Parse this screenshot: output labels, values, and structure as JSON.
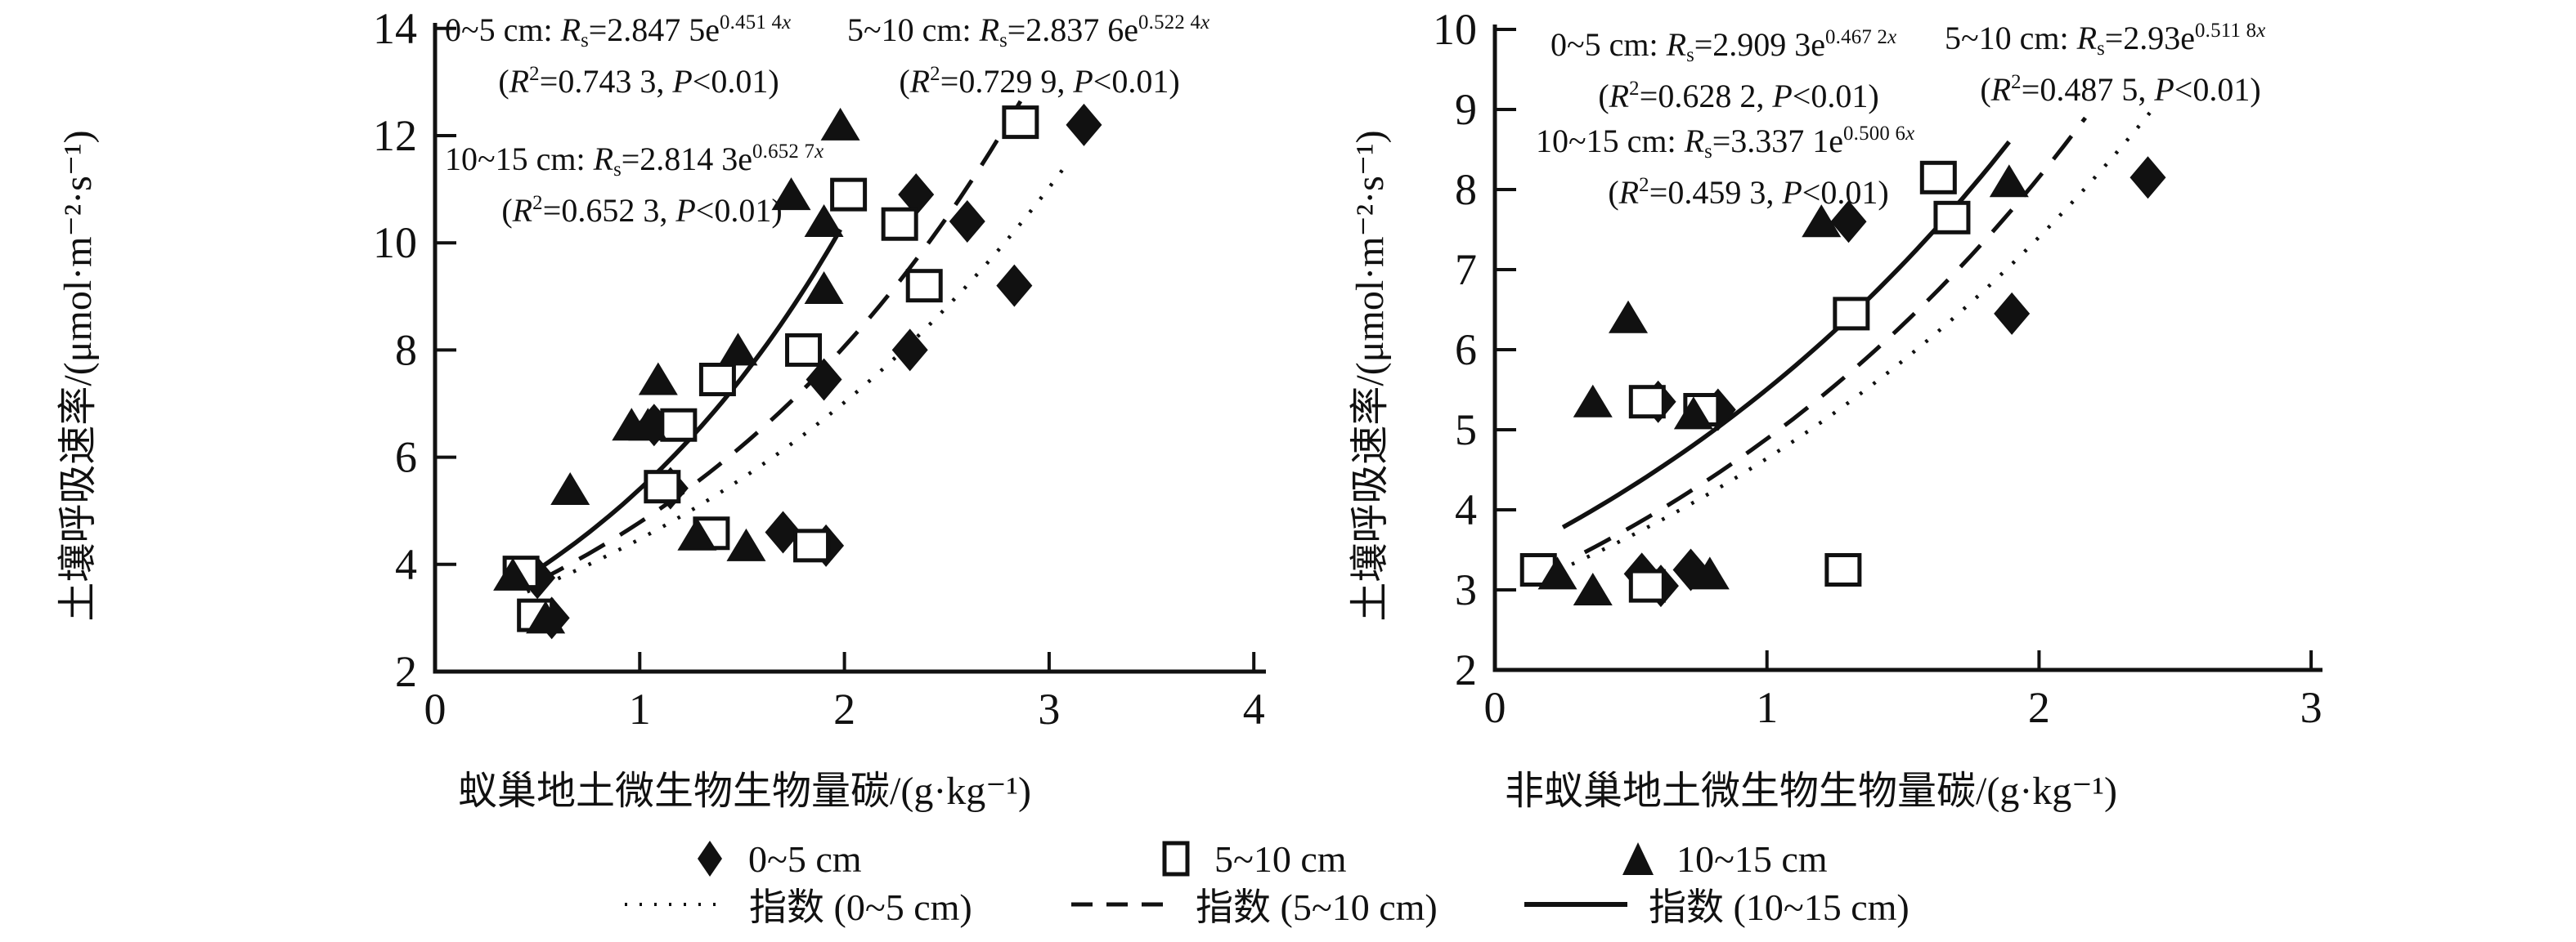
{
  "figure": {
    "background": "#ffffff",
    "ink": "#111111"
  },
  "ylabel": "土壤呼吸速率/(μmol·m⁻²·s⁻¹)",
  "chart_data": [
    {
      "type": "scatter",
      "panel": "ant-nest-soil",
      "title": "",
      "xlabel": "蚁巢地土微生物生物量碳/(g·kg⁻¹)",
      "ylabel": "土壤呼吸速率/(μmol·m⁻²·s⁻¹)",
      "xlim": [
        0,
        4
      ],
      "ylim": [
        2,
        14
      ],
      "x_ticks": [
        0,
        1,
        2,
        3,
        4
      ],
      "y_ticks": [
        2,
        4,
        6,
        8,
        10,
        12,
        14
      ],
      "grid": false,
      "series": [
        {
          "name": "0~5 cm",
          "marker": "diamond",
          "points": [
            [
              0.5,
              3.75
            ],
            [
              0.57,
              3.0
            ],
            [
              1.07,
              6.6
            ],
            [
              1.15,
              5.42
            ],
            [
              1.7,
              4.6
            ],
            [
              1.9,
              7.45
            ],
            [
              1.91,
              4.35
            ],
            [
              2.32,
              8.0
            ],
            [
              2.35,
              10.9
            ],
            [
              2.6,
              10.4
            ],
            [
              2.83,
              9.2
            ],
            [
              3.17,
              12.2
            ]
          ]
        },
        {
          "name": "5~10 cm",
          "marker": "square",
          "points": [
            [
              0.42,
              3.85
            ],
            [
              0.49,
              3.05
            ],
            [
              1.11,
              5.45
            ],
            [
              1.19,
              6.6
            ],
            [
              1.35,
              4.58
            ],
            [
              1.38,
              7.45
            ],
            [
              1.8,
              8.0
            ],
            [
              1.84,
              4.35
            ],
            [
              2.02,
              10.9
            ],
            [
              2.27,
              10.35
            ],
            [
              2.39,
              9.2
            ],
            [
              2.86,
              12.25
            ]
          ]
        },
        {
          "name": "10~15 cm",
          "marker": "triangle",
          "points": [
            [
              0.38,
              3.8
            ],
            [
              0.54,
              3.0
            ],
            [
              0.66,
              5.4
            ],
            [
              0.96,
              6.6
            ],
            [
              1.04,
              6.6
            ],
            [
              1.09,
              7.45
            ],
            [
              1.28,
              4.55
            ],
            [
              1.48,
              8.0
            ],
            [
              1.52,
              4.35
            ],
            [
              1.74,
              10.9
            ],
            [
              1.9,
              10.4
            ],
            [
              1.9,
              9.15
            ],
            [
              1.98,
              12.2
            ]
          ]
        }
      ],
      "fits": [
        {
          "name": "指数 (0~5 cm)",
          "line": "dotted",
          "a": 2.8475,
          "b": 0.4514,
          "x_range": [
            0.45,
            3.1
          ],
          "equation": "Rs=2.847 5e^0.451 4x",
          "r2": "0.743 3",
          "p": "<0.01"
        },
        {
          "name": "指数 (5~10 cm)",
          "line": "dashed",
          "a": 2.8376,
          "b": 0.5224,
          "x_range": [
            0.5,
            2.86
          ],
          "equation": "Rs=2.837 6e^0.522 4x",
          "r2": "0.729 9",
          "p": "<0.01"
        },
        {
          "name": "指数 (10~15 cm)",
          "line": "solid",
          "a": 2.8143,
          "b": 0.6527,
          "x_range": [
            0.43,
            1.98
          ],
          "equation": "Rs=2.814 3e^0.652 7x",
          "r2": "0.652 3",
          "p": "<0.01"
        }
      ],
      "annotations": [
        {
          "lines": [
            [
              {
                "t": "0~5 cm: "
              },
              {
                "t": "R",
                "s": "i"
              },
              {
                "t": "s",
                "s": "sub"
              },
              {
                "t": "=2.847 5e"
              },
              {
                "t": "0.451 4",
                "s": "sup"
              },
              {
                "t": "x",
                "s": "supi"
              }
            ],
            [
              {
                "t": "("
              },
              {
                "t": "R",
                "s": "i"
              },
              {
                "t": "2",
                "s": "sup"
              },
              {
                "t": "=0.743 3, "
              },
              {
                "t": "P",
                "s": "i"
              },
              {
                "t": "<0.01)"
              }
            ]
          ]
        },
        {
          "lines": [
            [
              {
                "t": "5~10 cm: "
              },
              {
                "t": "R",
                "s": "i"
              },
              {
                "t": "s",
                "s": "sub"
              },
              {
                "t": "=2.837 6e"
              },
              {
                "t": "0.522 4",
                "s": "sup"
              },
              {
                "t": "x",
                "s": "supi"
              }
            ],
            [
              {
                "t": "("
              },
              {
                "t": "R",
                "s": "i"
              },
              {
                "t": "2",
                "s": "sup"
              },
              {
                "t": "=0.729 9, "
              },
              {
                "t": "P",
                "s": "i"
              },
              {
                "t": "<0.01)"
              }
            ]
          ]
        },
        {
          "lines": [
            [
              {
                "t": "10~15 cm: "
              },
              {
                "t": "R",
                "s": "i"
              },
              {
                "t": "s",
                "s": "sub"
              },
              {
                "t": "=2.814 3e"
              },
              {
                "t": "0.652 7",
                "s": "sup"
              },
              {
                "t": "x",
                "s": "supi"
              }
            ],
            [
              {
                "t": "("
              },
              {
                "t": "R",
                "s": "i"
              },
              {
                "t": "2",
                "s": "sup"
              },
              {
                "t": "=0.652 3, "
              },
              {
                "t": "P",
                "s": "i"
              },
              {
                "t": "<0.01)"
              }
            ]
          ]
        }
      ]
    },
    {
      "type": "scatter",
      "panel": "non-ant-nest-soil",
      "title": "",
      "xlabel": "非蚁巢地土微生物生物量碳/(g·kg⁻¹)",
      "ylabel": "土壤呼吸速率/(μmol·m⁻²·s⁻¹)",
      "xlim": [
        0,
        3
      ],
      "ylim": [
        2,
        10
      ],
      "x_ticks": [
        0,
        1,
        2,
        3
      ],
      "y_ticks": [
        2,
        3,
        4,
        5,
        6,
        7,
        8,
        9,
        10
      ],
      "grid": false,
      "series": [
        {
          "name": "0~5 cm",
          "marker": "diamond",
          "points": [
            [
              0.54,
              3.2
            ],
            [
              0.61,
              3.05
            ],
            [
              0.72,
              3.25
            ],
            [
              0.6,
              5.35
            ],
            [
              0.82,
              5.25
            ],
            [
              1.3,
              7.6
            ],
            [
              1.9,
              6.45
            ],
            [
              2.4,
              8.15
            ]
          ]
        },
        {
          "name": "5~10 cm",
          "marker": "square",
          "points": [
            [
              0.16,
              3.25
            ],
            [
              0.56,
              3.05
            ],
            [
              0.56,
              5.35
            ],
            [
              0.76,
              5.25
            ],
            [
              1.28,
              3.25
            ],
            [
              1.31,
              6.45
            ],
            [
              1.63,
              8.15
            ],
            [
              1.68,
              7.65
            ]
          ]
        },
        {
          "name": "10~15 cm",
          "marker": "triangle",
          "points": [
            [
              0.23,
              3.2
            ],
            [
              0.36,
              3.0
            ],
            [
              0.36,
              5.35
            ],
            [
              0.49,
              6.4
            ],
            [
              0.73,
              5.2
            ],
            [
              0.79,
              3.2
            ],
            [
              1.2,
              7.6
            ],
            [
              1.89,
              8.1
            ]
          ]
        }
      ],
      "fits": [
        {
          "name": "指数 (0~5 cm)",
          "line": "dotted",
          "a": 2.9093,
          "b": 0.4672,
          "x_range": [
            0.17,
            2.42
          ],
          "equation": "Rs=2.909 3e^0.467 2x",
          "r2": "0.628 2",
          "p": "<0.01"
        },
        {
          "name": "指数 (5~10 cm)",
          "line": "dashed",
          "a": 2.93,
          "b": 0.5118,
          "x_range": [
            0.33,
            2.17
          ],
          "equation": "Rs=2.93e^0.511 8x",
          "r2": "0.487 5",
          "p": "<0.01"
        },
        {
          "name": "指数 (10~15 cm)",
          "line": "solid",
          "a": 3.3371,
          "b": 0.5006,
          "x_range": [
            0.25,
            1.89
          ],
          "equation": "Rs=3.337 1e^0.500 6x",
          "r2": "0.459 3",
          "p": "<0.01"
        }
      ],
      "annotations": [
        {
          "lines": [
            [
              {
                "t": "0~5 cm: "
              },
              {
                "t": "R",
                "s": "i"
              },
              {
                "t": "s",
                "s": "sub"
              },
              {
                "t": "=2.909 3e"
              },
              {
                "t": "0.467 2",
                "s": "sup"
              },
              {
                "t": "x",
                "s": "supi"
              }
            ],
            [
              {
                "t": "("
              },
              {
                "t": "R",
                "s": "i"
              },
              {
                "t": "2",
                "s": "sup"
              },
              {
                "t": "=0.628 2, "
              },
              {
                "t": "P",
                "s": "i"
              },
              {
                "t": "<0.01)"
              }
            ]
          ]
        },
        {
          "lines": [
            [
              {
                "t": "5~10 cm: "
              },
              {
                "t": "R",
                "s": "i"
              },
              {
                "t": "s",
                "s": "sub"
              },
              {
                "t": "=2.93e"
              },
              {
                "t": "0.511 8",
                "s": "sup"
              },
              {
                "t": "x",
                "s": "supi"
              }
            ],
            [
              {
                "t": "("
              },
              {
                "t": "R",
                "s": "i"
              },
              {
                "t": "2",
                "s": "sup"
              },
              {
                "t": "=0.487 5, "
              },
              {
                "t": "P",
                "s": "i"
              },
              {
                "t": "<0.01)"
              }
            ]
          ]
        },
        {
          "lines": [
            [
              {
                "t": "10~15 cm: "
              },
              {
                "t": "R",
                "s": "i"
              },
              {
                "t": "s",
                "s": "sub"
              },
              {
                "t": "=3.337 1e"
              },
              {
                "t": "0.500 6",
                "s": "sup"
              },
              {
                "t": "x",
                "s": "supi"
              }
            ],
            [
              {
                "t": "("
              },
              {
                "t": "R",
                "s": "i"
              },
              {
                "t": "2",
                "s": "sup"
              },
              {
                "t": "=0.459 3, "
              },
              {
                "t": "P",
                "s": "i"
              },
              {
                "t": "<0.01)"
              }
            ]
          ]
        }
      ]
    }
  ],
  "legend": {
    "markers": [
      {
        "label": "0~5 cm",
        "marker": "diamond"
      },
      {
        "label": "5~10 cm",
        "marker": "square"
      },
      {
        "label": "10~15 cm",
        "marker": "triangle"
      }
    ],
    "lines": [
      {
        "label": "指数 (0~5 cm)",
        "line": "dotted"
      },
      {
        "label": "指数 (5~10 cm)",
        "line": "dashed"
      },
      {
        "label": "指数 (10~15 cm)",
        "line": "solid"
      }
    ]
  }
}
